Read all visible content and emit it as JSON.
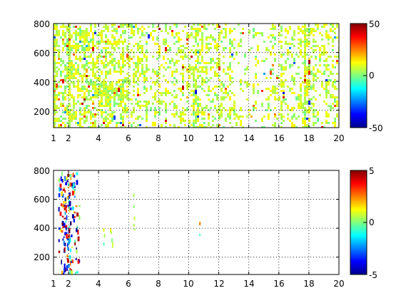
{
  "chart_data": [
    {
      "type": "heatmap",
      "title": "",
      "xlabel": "",
      "ylabel": "",
      "xlim": [
        1,
        20
      ],
      "ylim": [
        80,
        800
      ],
      "grid": true,
      "grid_style": "dotted",
      "x_ticks": [
        "1",
        "2",
        "4",
        "6",
        "8",
        "10",
        "12",
        "14",
        "16",
        "18",
        "20"
      ],
      "y_ticks": [
        "200",
        "400",
        "600",
        "800"
      ],
      "colorbar": {
        "min": -50,
        "max": 50,
        "ticks": [
          "50",
          "0",
          "-50"
        ],
        "colormap": "jet"
      },
      "description": "dense scatter of small colored cells across the full range, values mostly near 0 to +15 (cyan/green/yellow), heavier density for x < 7, a cluster near x=4.7 y=320, vertical streaks near x=10.5, 11.7, 15.6, 17.8"
    },
    {
      "type": "heatmap",
      "title": "",
      "xlabel": "",
      "ylabel": "",
      "xlim": [
        1,
        20
      ],
      "ylim": [
        80,
        800
      ],
      "grid": true,
      "grid_style": "dotted",
      "x_ticks": [
        "1",
        "2",
        "4",
        "6",
        "8",
        "10",
        "12",
        "14",
        "16",
        "18",
        "20"
      ],
      "y_ticks": [
        "200",
        "400",
        "600",
        "800"
      ],
      "colorbar": {
        "min": -5,
        "max": 5,
        "ticks": [
          "5",
          "0",
          "-5"
        ],
        "colormap": "jet"
      },
      "description": "sparse cells: strong values (-5 to +5, blue/red) concentrated at x = 1.3 to 2.7, weak isolated cells near x = 4.3, 4.8, 6.3 and 10.7"
    }
  ]
}
